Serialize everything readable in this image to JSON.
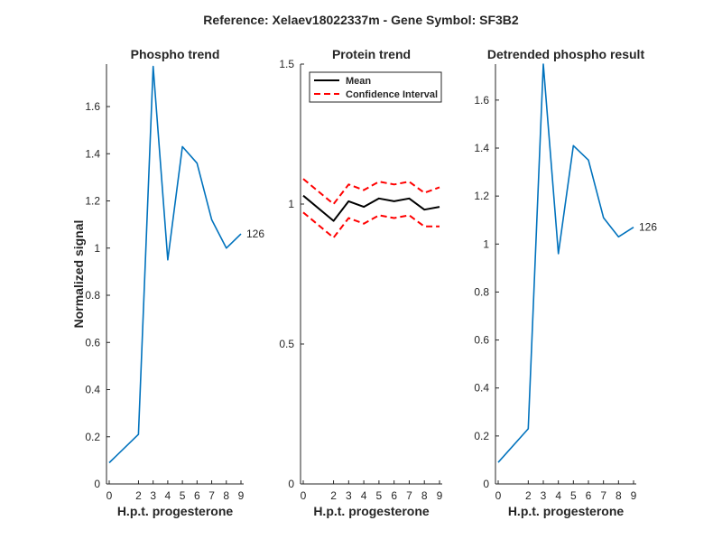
{
  "figure": {
    "suptitle": "Reference:  Xelaev18022337m - Gene Symbol:  SF3B2"
  },
  "chart_data": [
    {
      "type": "line",
      "title": "Phospho trend",
      "xlabel": "H.p.t. progesterone",
      "ylabel": "Normalized signal",
      "x": [
        0,
        2,
        3,
        4,
        5,
        6,
        7,
        8,
        9
      ],
      "xticks": [
        "0",
        "2",
        "3",
        "4",
        "5",
        "6",
        "7",
        "8",
        "9"
      ],
      "ylim": [
        0,
        1.78
      ],
      "yticks": [
        0,
        0.2,
        0.4,
        0.6,
        0.8,
        1,
        1.2,
        1.4,
        1.6
      ],
      "ytick_labels": [
        "0",
        "0.2",
        "0.4",
        "0.6",
        "0.8",
        "1",
        "1.2",
        "1.4",
        "1.6"
      ],
      "series": [
        {
          "values": [
            0.09,
            0.21,
            1.77,
            0.95,
            1.43,
            1.36,
            1.12,
            1.0,
            1.06
          ],
          "color": "#0072BD"
        }
      ],
      "end_label": "126",
      "grid": false
    },
    {
      "type": "line",
      "title": "Protein trend",
      "xlabel": "H.p.t. progesterone",
      "ylabel": "",
      "x": [
        0,
        2,
        3,
        4,
        5,
        6,
        7,
        8,
        9
      ],
      "xticks": [
        "0",
        "2",
        "3",
        "4",
        "5",
        "6",
        "7",
        "8",
        "9"
      ],
      "ylim": [
        0,
        1.5
      ],
      "yticks": [
        0,
        0.5,
        1,
        1.5
      ],
      "ytick_labels": [
        "0",
        "0.5",
        "1",
        "1.5"
      ],
      "series": [
        {
          "name": "Mean",
          "values": [
            1.03,
            0.94,
            1.01,
            0.99,
            1.02,
            1.01,
            1.02,
            0.98,
            0.99
          ],
          "color": "#000000",
          "style": "solid"
        },
        {
          "name": "Confidence Interval",
          "values": [
            1.09,
            1.0,
            1.07,
            1.05,
            1.08,
            1.07,
            1.08,
            1.04,
            1.06
          ],
          "color": "#FF0000",
          "style": "dashed"
        },
        {
          "name": "",
          "values": [
            0.97,
            0.88,
            0.95,
            0.93,
            0.96,
            0.95,
            0.96,
            0.92,
            0.92
          ],
          "color": "#FF0000",
          "style": "dashed"
        }
      ],
      "legend": {
        "position": "top-left",
        "entries": [
          "Mean",
          "Confidence Interval"
        ]
      },
      "grid": false
    },
    {
      "type": "line",
      "title": "Detrended phospho result",
      "xlabel": "H.p.t. progesterone",
      "ylabel": "",
      "x": [
        0,
        2,
        3,
        4,
        5,
        6,
        7,
        8,
        9
      ],
      "xticks": [
        "0",
        "2",
        "3",
        "4",
        "5",
        "6",
        "7",
        "8",
        "9"
      ],
      "ylim": [
        0,
        1.75
      ],
      "yticks": [
        0,
        0.2,
        0.4,
        0.6,
        0.8,
        1,
        1.2,
        1.4,
        1.6
      ],
      "ytick_labels": [
        "0",
        "0.2",
        "0.4",
        "0.6",
        "0.8",
        "1",
        "1.2",
        "1.4",
        "1.6"
      ],
      "series": [
        {
          "values": [
            0.09,
            0.23,
            1.75,
            0.96,
            1.41,
            1.35,
            1.11,
            1.03,
            1.07
          ],
          "color": "#0072BD"
        }
      ],
      "end_label": "126",
      "grid": false
    }
  ]
}
